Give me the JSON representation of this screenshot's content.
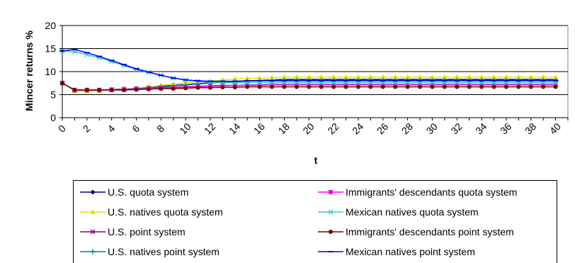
{
  "chart_data": {
    "type": "line",
    "title": "",
    "xlabel": "t",
    "ylabel": "Mincer returns %",
    "xlim": [
      0,
      41
    ],
    "ylim": [
      0,
      20
    ],
    "yticks": [
      0,
      5,
      10,
      15,
      20
    ],
    "xticks": [
      0,
      2,
      4,
      6,
      8,
      10,
      12,
      14,
      16,
      18,
      20,
      22,
      24,
      26,
      28,
      30,
      32,
      34,
      36,
      38,
      40
    ],
    "grid": "horizontal",
    "legend_position": "bottom",
    "x": [
      0,
      1,
      2,
      3,
      4,
      5,
      6,
      7,
      8,
      9,
      10,
      11,
      12,
      13,
      14,
      15,
      16,
      17,
      18,
      19,
      20,
      21,
      22,
      23,
      24,
      25,
      26,
      27,
      28,
      29,
      30,
      31,
      32,
      33,
      34,
      35,
      36,
      37,
      38,
      39,
      40
    ],
    "series": [
      {
        "name": "U.S. quota system",
        "color": "#000080",
        "marker": "diamond",
        "values": [
          7.5,
          6.0,
          6.0,
          6.0,
          6.1,
          6.2,
          6.3,
          6.5,
          6.8,
          7.0,
          7.2,
          7.4,
          7.6,
          7.8,
          7.9,
          8.0,
          8.1,
          8.2,
          8.3,
          8.3,
          8.3,
          8.3,
          8.3,
          8.3,
          8.3,
          8.3,
          8.3,
          8.3,
          8.3,
          8.3,
          8.3,
          8.3,
          8.3,
          8.3,
          8.3,
          8.3,
          8.3,
          8.3,
          8.3,
          8.3,
          8.3
        ]
      },
      {
        "name": "U.S. natives quota system",
        "color": "#e6e600",
        "marker": "triangle",
        "values": [
          7.5,
          5.8,
          5.8,
          5.9,
          6.0,
          6.2,
          6.4,
          6.7,
          7.0,
          7.3,
          7.6,
          7.8,
          8.0,
          8.2,
          8.4,
          8.5,
          8.6,
          8.7,
          8.8,
          8.8,
          8.8,
          8.8,
          8.8,
          8.8,
          8.8,
          8.8,
          8.8,
          8.8,
          8.8,
          8.8,
          8.8,
          8.8,
          8.8,
          8.8,
          8.8,
          8.8,
          8.8,
          8.8,
          8.8,
          8.8,
          8.8
        ]
      },
      {
        "name": "U.S. point system",
        "color": "#800080",
        "marker": "x",
        "values": [
          7.5,
          6.0,
          6.0,
          6.0,
          6.1,
          6.2,
          6.3,
          6.4,
          6.5,
          6.6,
          6.7,
          6.8,
          6.9,
          7.0,
          7.0,
          7.1,
          7.1,
          7.2,
          7.2,
          7.2,
          7.2,
          7.2,
          7.2,
          7.2,
          7.2,
          7.2,
          7.2,
          7.2,
          7.2,
          7.2,
          7.2,
          7.2,
          7.2,
          7.2,
          7.2,
          7.2,
          7.2,
          7.2,
          7.2,
          7.2,
          7.2
        ]
      },
      {
        "name": "U.S. natives point system",
        "color": "#008080",
        "marker": "plus",
        "values": [
          7.5,
          6.0,
          6.0,
          6.0,
          6.1,
          6.2,
          6.3,
          6.5,
          6.7,
          6.9,
          7.1,
          7.3,
          7.5,
          7.7,
          7.8,
          7.9,
          8.0,
          8.1,
          8.1,
          8.1,
          8.1,
          8.1,
          8.1,
          8.1,
          8.1,
          8.1,
          8.1,
          8.1,
          8.1,
          8.1,
          8.1,
          8.1,
          8.1,
          8.1,
          8.1,
          8.1,
          8.1,
          8.1,
          8.1,
          8.1,
          8.1
        ]
      },
      {
        "name": "Immigrants' descendants quota system",
        "color": "#ff00ff",
        "marker": "square",
        "values": [
          7.5,
          6.0,
          6.0,
          6.0,
          6.0,
          6.1,
          6.2,
          6.3,
          6.4,
          6.5,
          6.6,
          6.7,
          6.8,
          6.9,
          7.0,
          7.0,
          7.0,
          7.1,
          7.1,
          7.1,
          7.1,
          7.1,
          7.1,
          7.1,
          7.1,
          7.1,
          7.1,
          7.1,
          7.1,
          7.1,
          7.1,
          7.1,
          7.1,
          7.1,
          7.1,
          7.1,
          7.1,
          7.1,
          7.1,
          7.1,
          7.1
        ]
      },
      {
        "name": "Mexican natives quota system",
        "color": "#33cccc",
        "marker": "x",
        "values": [
          14.5,
          14.3,
          13.7,
          13.0,
          12.2,
          11.3,
          10.5,
          9.8,
          9.2,
          8.6,
          8.2,
          7.9,
          7.7,
          7.6,
          7.6,
          7.6,
          7.6,
          7.6,
          7.6,
          7.6,
          7.6,
          7.6,
          7.6,
          7.6,
          7.6,
          7.6,
          7.6,
          7.6,
          7.6,
          7.6,
          7.6,
          7.6,
          7.6,
          7.6,
          7.6,
          7.6,
          7.6,
          7.6,
          7.6,
          7.6,
          7.6
        ]
      },
      {
        "name": "Immigrants' descendants point system",
        "color": "#800000",
        "marker": "circle",
        "values": [
          7.5,
          6.0,
          6.0,
          6.0,
          6.0,
          6.0,
          6.1,
          6.2,
          6.3,
          6.3,
          6.4,
          6.5,
          6.5,
          6.6,
          6.6,
          6.7,
          6.7,
          6.7,
          6.7,
          6.7,
          6.7,
          6.7,
          6.7,
          6.7,
          6.7,
          6.7,
          6.7,
          6.7,
          6.7,
          6.7,
          6.7,
          6.7,
          6.7,
          6.7,
          6.7,
          6.7,
          6.7,
          6.7,
          6.7,
          6.7,
          6.7
        ]
      },
      {
        "name": "Mexican natives point system",
        "color": "#0000ff",
        "marker": "dash",
        "values": [
          14.5,
          14.8,
          14.1,
          13.3,
          12.4,
          11.5,
          10.6,
          9.9,
          9.2,
          8.6,
          8.2,
          8.0,
          7.9,
          7.9,
          7.9,
          8.0,
          8.0,
          8.0,
          8.0,
          8.0,
          8.0,
          8.0,
          8.0,
          8.0,
          8.0,
          8.0,
          8.0,
          8.0,
          8.0,
          8.0,
          8.0,
          8.0,
          8.0,
          8.0,
          8.0,
          8.0,
          8.0,
          8.0,
          8.0,
          8.0,
          8.0
        ]
      }
    ]
  }
}
